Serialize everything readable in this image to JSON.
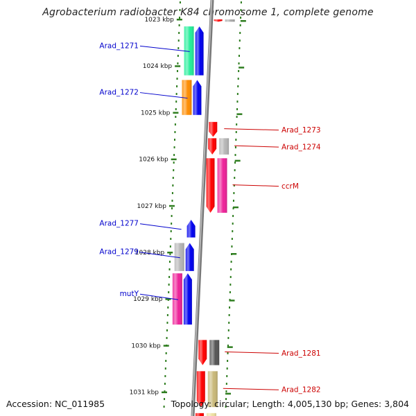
{
  "title": "Agrobacterium radiobacter K84 chromosome 1, complete genome",
  "footer": {
    "accession": "Accession: NC_011985",
    "topology": "Topology: circular; Length: 4,005,130 bp; Genes: 3,804"
  },
  "colors": {
    "axis_line": "#999999",
    "tick": "#2e7d1f",
    "left_label": "#0000cc",
    "right_label": "#cc0000"
  },
  "kbp_scale": {
    "start_kbp": 1023,
    "labels": [
      "1023 kbp",
      "1024 kbp",
      "1025 kbp",
      "1026 kbp",
      "1027 kbp",
      "1028 kbp",
      "1029 kbp",
      "1030 kbp",
      "1031 kbp"
    ]
  },
  "genes": [
    {
      "id": "g-top-a",
      "strand": "right",
      "lane": 1,
      "color": "#ff0000",
      "start": 0.0,
      "end": 0.05,
      "label": ""
    },
    {
      "id": "g-top-b",
      "strand": "right",
      "lane": 2,
      "color": "#aaaaaa",
      "start": 0.0,
      "end": 0.05,
      "label": ""
    },
    {
      "id": "g-1271-a",
      "strand": "left",
      "lane": 2,
      "color": "#22ee99",
      "start": 0.15,
      "end": 1.2,
      "label": ""
    },
    {
      "id": "g-1271",
      "strand": "left",
      "lane": 1,
      "color": "#0000ee",
      "start": 0.15,
      "end": 1.2,
      "label": "Arad_1271"
    },
    {
      "id": "g-1272-a",
      "strand": "left",
      "lane": 2,
      "color": "#ff8c00",
      "start": 1.3,
      "end": 2.05,
      "label": ""
    },
    {
      "id": "g-1272",
      "strand": "left",
      "lane": 1,
      "color": "#0000ee",
      "start": 1.3,
      "end": 2.05,
      "label": "Arad_1272"
    },
    {
      "id": "g-1273",
      "strand": "right",
      "lane": 1,
      "color": "#ff0000",
      "start": 2.2,
      "end": 2.52,
      "label": "Arad_1273"
    },
    {
      "id": "g-1274-a",
      "strand": "right",
      "lane": 1,
      "color": "#ff0000",
      "start": 2.55,
      "end": 2.9,
      "label": ""
    },
    {
      "id": "g-1274",
      "strand": "right",
      "lane": 2,
      "color": "#b5b5b5",
      "start": 2.55,
      "end": 2.9,
      "label": "Arad_1274"
    },
    {
      "id": "g-ccrM-a",
      "strand": "right",
      "lane": 1,
      "color": "#ff0000",
      "start": 2.98,
      "end": 4.15,
      "label": ""
    },
    {
      "id": "g-ccrM",
      "strand": "right",
      "lane": 2,
      "color": "#ee2299",
      "start": 2.98,
      "end": 4.15,
      "label": "ccrM"
    },
    {
      "id": "g-1277",
      "strand": "left",
      "lane": 1,
      "color": "#0000ee",
      "start": 4.3,
      "end": 4.68,
      "label": "Arad_1277"
    },
    {
      "id": "g-1279-a",
      "strand": "left",
      "lane": 2,
      "color": "#b5b5b5",
      "start": 4.8,
      "end": 5.4,
      "label": ""
    },
    {
      "id": "g-1279",
      "strand": "left",
      "lane": 1,
      "color": "#0000ee",
      "start": 4.8,
      "end": 5.4,
      "label": "Arad_1279"
    },
    {
      "id": "g-mutY-a",
      "strand": "left",
      "lane": 2,
      "color": "#ee2299",
      "start": 5.45,
      "end": 6.55,
      "label": ""
    },
    {
      "id": "g-mutY",
      "strand": "left",
      "lane": 1,
      "color": "#0000ee",
      "start": 5.45,
      "end": 6.55,
      "label": "mutY"
    },
    {
      "id": "g-1281-a",
      "strand": "right",
      "lane": 1,
      "color": "#ff0000",
      "start": 6.88,
      "end": 7.42,
      "label": ""
    },
    {
      "id": "g-1281",
      "strand": "right",
      "lane": 2,
      "color": "#555555",
      "start": 6.88,
      "end": 7.42,
      "label": "Arad_1281"
    },
    {
      "id": "g-1282-a",
      "strand": "right",
      "lane": 1,
      "color": "#ff0000",
      "start": 7.55,
      "end": 8.32,
      "label": ""
    },
    {
      "id": "g-1282",
      "strand": "right",
      "lane": 2,
      "color": "#c8b878",
      "start": 7.55,
      "end": 8.32,
      "label": "Arad_1282"
    },
    {
      "id": "g-bot-a",
      "strand": "right",
      "lane": 1,
      "color": "#ff0000",
      "start": 8.45,
      "end": 8.6,
      "label": ""
    },
    {
      "id": "g-bot-b",
      "strand": "right",
      "lane": 2,
      "color": "#eee0a0",
      "start": 8.45,
      "end": 8.6,
      "label": ""
    }
  ]
}
